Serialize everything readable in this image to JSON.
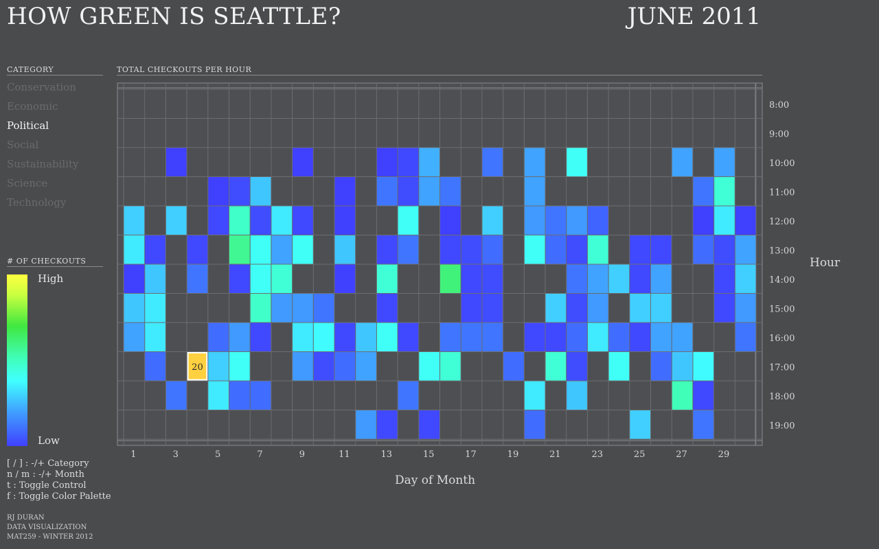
{
  "header": {
    "title": "HOW GREEN IS SEATTLE?",
    "date": "JUNE 2011"
  },
  "category": {
    "heading": "CATEGORY",
    "items": [
      "Conservation",
      "Economic",
      "Political",
      "Social",
      "Sustainability",
      "Science",
      "Technology"
    ],
    "selected": "Political"
  },
  "legend": {
    "heading": "# OF CHECKOUTS",
    "high": "High",
    "low": "Low"
  },
  "keys": [
    "[ / ] : -/+ Category",
    "n / m : -/+ Month",
    "t : Toggle Control",
    "f : Toggle Color Palette"
  ],
  "credits": [
    "RJ DURAN",
    "DATA VISUALIZATION",
    "MAT259 - WINTER 2012"
  ],
  "colors": {
    "background": "#4a4b4d",
    "grid": "#6c6d70",
    "cell_bg": "#4e4f52",
    "highlight": "#ffd040",
    "palette": [
      "#4040ff",
      "#4080ff",
      "#40c0ff",
      "#40ffff",
      "#40ffc0",
      "#40e840",
      "#c8ff40",
      "#ffff40"
    ]
  },
  "chart_data": {
    "type": "heatmap",
    "title": "TOTAL CHECKOUTS PER HOUR",
    "xlabel": "Day of Month",
    "ylabel": "Hour",
    "x_ticks": [
      "1",
      "3",
      "5",
      "7",
      "9",
      "11",
      "13",
      "15",
      "17",
      "19",
      "21",
      "23",
      "25",
      "27",
      "29"
    ],
    "hours": [
      "8:00",
      "9:00",
      "10:00",
      "11:00",
      "12:00",
      "13:00",
      "14:00",
      "15:00",
      "16:00",
      "17:00",
      "18:00",
      "19:00"
    ],
    "days": 30,
    "value_scale": "relative 0 (Low) to 1 (High)",
    "highlight": {
      "day": 4,
      "hour": "17:00",
      "value": "20"
    },
    "cells": [
      [
        3,
        "10:00",
        0.0
      ],
      [
        9,
        "10:00",
        0.0
      ],
      [
        13,
        "10:00",
        0.0
      ],
      [
        14,
        "10:00",
        0.02
      ],
      [
        15,
        "10:00",
        0.25
      ],
      [
        18,
        "10:00",
        0.12
      ],
      [
        20,
        "10:00",
        0.22
      ],
      [
        22,
        "10:00",
        0.45
      ],
      [
        27,
        "10:00",
        0.22
      ],
      [
        29,
        "10:00",
        0.22
      ],
      [
        5,
        "11:00",
        0.0
      ],
      [
        6,
        "11:00",
        0.03
      ],
      [
        7,
        "11:00",
        0.3
      ],
      [
        11,
        "11:00",
        0.0
      ],
      [
        13,
        "11:00",
        0.12
      ],
      [
        14,
        "11:00",
        0.03
      ],
      [
        15,
        "11:00",
        0.22
      ],
      [
        16,
        "11:00",
        0.12
      ],
      [
        20,
        "11:00",
        0.22
      ],
      [
        28,
        "11:00",
        0.12
      ],
      [
        29,
        "11:00",
        0.52
      ],
      [
        1,
        "12:00",
        0.32
      ],
      [
        3,
        "12:00",
        0.32
      ],
      [
        5,
        "12:00",
        0.02
      ],
      [
        6,
        "12:00",
        0.55
      ],
      [
        7,
        "12:00",
        0.03
      ],
      [
        8,
        "12:00",
        0.38
      ],
      [
        9,
        "12:00",
        0.02
      ],
      [
        11,
        "12:00",
        0.0
      ],
      [
        14,
        "12:00",
        0.45
      ],
      [
        16,
        "12:00",
        0.0
      ],
      [
        18,
        "12:00",
        0.32
      ],
      [
        20,
        "12:00",
        0.2
      ],
      [
        21,
        "12:00",
        0.12
      ],
      [
        22,
        "12:00",
        0.2
      ],
      [
        23,
        "12:00",
        0.08
      ],
      [
        28,
        "12:00",
        0.0
      ],
      [
        29,
        "12:00",
        0.38
      ],
      [
        30,
        "12:00",
        0.0
      ],
      [
        1,
        "13:00",
        0.38
      ],
      [
        2,
        "13:00",
        0.02
      ],
      [
        4,
        "13:00",
        0.02
      ],
      [
        6,
        "13:00",
        0.62
      ],
      [
        7,
        "13:00",
        0.45
      ],
      [
        8,
        "13:00",
        0.22
      ],
      [
        9,
        "13:00",
        0.45
      ],
      [
        11,
        "13:00",
        0.3
      ],
      [
        13,
        "13:00",
        0.02
      ],
      [
        14,
        "13:00",
        0.12
      ],
      [
        16,
        "13:00",
        0.02
      ],
      [
        17,
        "13:00",
        0.03
      ],
      [
        18,
        "13:00",
        0.1
      ],
      [
        20,
        "13:00",
        0.45
      ],
      [
        21,
        "13:00",
        0.1
      ],
      [
        22,
        "13:00",
        0.03
      ],
      [
        23,
        "13:00",
        0.52
      ],
      [
        25,
        "13:00",
        0.02
      ],
      [
        26,
        "13:00",
        0.02
      ],
      [
        28,
        "13:00",
        0.1
      ],
      [
        29,
        "13:00",
        0.03
      ],
      [
        30,
        "13:00",
        0.22
      ],
      [
        1,
        "14:00",
        0.0
      ],
      [
        2,
        "14:00",
        0.3
      ],
      [
        4,
        "14:00",
        0.12
      ],
      [
        6,
        "14:00",
        0.02
      ],
      [
        7,
        "14:00",
        0.45
      ],
      [
        8,
        "14:00",
        0.52
      ],
      [
        11,
        "14:00",
        0.0
      ],
      [
        13,
        "14:00",
        0.52
      ],
      [
        16,
        "14:00",
        0.65
      ],
      [
        17,
        "14:00",
        0.02
      ],
      [
        18,
        "14:00",
        0.03
      ],
      [
        22,
        "14:00",
        0.12
      ],
      [
        23,
        "14:00",
        0.22
      ],
      [
        24,
        "14:00",
        0.32
      ],
      [
        25,
        "14:00",
        0.02
      ],
      [
        26,
        "14:00",
        0.22
      ],
      [
        29,
        "14:00",
        0.02
      ],
      [
        30,
        "14:00",
        0.32
      ],
      [
        1,
        "15:00",
        0.3
      ],
      [
        2,
        "15:00",
        0.38
      ],
      [
        7,
        "15:00",
        0.55
      ],
      [
        8,
        "15:00",
        0.2
      ],
      [
        9,
        "15:00",
        0.2
      ],
      [
        10,
        "15:00",
        0.12
      ],
      [
        13,
        "15:00",
        0.02
      ],
      [
        17,
        "15:00",
        0.02
      ],
      [
        18,
        "15:00",
        0.03
      ],
      [
        21,
        "15:00",
        0.32
      ],
      [
        22,
        "15:00",
        0.03
      ],
      [
        23,
        "15:00",
        0.2
      ],
      [
        25,
        "15:00",
        0.32
      ],
      [
        26,
        "15:00",
        0.32
      ],
      [
        29,
        "15:00",
        0.02
      ],
      [
        30,
        "15:00",
        0.2
      ],
      [
        1,
        "16:00",
        0.22
      ],
      [
        2,
        "16:00",
        0.38
      ],
      [
        5,
        "16:00",
        0.1
      ],
      [
        6,
        "16:00",
        0.2
      ],
      [
        7,
        "16:00",
        0.02
      ],
      [
        9,
        "16:00",
        0.38
      ],
      [
        10,
        "16:00",
        0.42
      ],
      [
        11,
        "16:00",
        0.02
      ],
      [
        12,
        "16:00",
        0.3
      ],
      [
        13,
        "16:00",
        0.45
      ],
      [
        14,
        "16:00",
        0.02
      ],
      [
        16,
        "16:00",
        0.12
      ],
      [
        17,
        "16:00",
        0.12
      ],
      [
        18,
        "16:00",
        0.12
      ],
      [
        20,
        "16:00",
        0.02
      ],
      [
        21,
        "16:00",
        0.02
      ],
      [
        22,
        "16:00",
        0.1
      ],
      [
        23,
        "16:00",
        0.38
      ],
      [
        24,
        "16:00",
        0.1
      ],
      [
        25,
        "16:00",
        0.02
      ],
      [
        26,
        "16:00",
        0.22
      ],
      [
        27,
        "16:00",
        0.22
      ],
      [
        30,
        "16:00",
        0.12
      ],
      [
        2,
        "17:00",
        0.1
      ],
      [
        5,
        "17:00",
        0.32
      ],
      [
        6,
        "17:00",
        0.45
      ],
      [
        9,
        "17:00",
        0.2
      ],
      [
        10,
        "17:00",
        0.03
      ],
      [
        11,
        "17:00",
        0.1
      ],
      [
        12,
        "17:00",
        0.22
      ],
      [
        15,
        "17:00",
        0.45
      ],
      [
        16,
        "17:00",
        0.52
      ],
      [
        19,
        "17:00",
        0.1
      ],
      [
        21,
        "17:00",
        0.52
      ],
      [
        22,
        "17:00",
        0.03
      ],
      [
        24,
        "17:00",
        0.45
      ],
      [
        26,
        "17:00",
        0.1
      ],
      [
        27,
        "17:00",
        0.3
      ],
      [
        28,
        "17:00",
        0.42
      ],
      [
        3,
        "18:00",
        0.12
      ],
      [
        5,
        "18:00",
        0.38
      ],
      [
        6,
        "18:00",
        0.1
      ],
      [
        7,
        "18:00",
        0.1
      ],
      [
        14,
        "18:00",
        0.12
      ],
      [
        20,
        "18:00",
        0.38
      ],
      [
        22,
        "18:00",
        0.3
      ],
      [
        27,
        "18:00",
        0.58
      ],
      [
        28,
        "18:00",
        0.02
      ],
      [
        12,
        "19:00",
        0.2
      ],
      [
        13,
        "19:00",
        0.02
      ],
      [
        15,
        "19:00",
        0.02
      ],
      [
        20,
        "19:00",
        0.1
      ],
      [
        25,
        "19:00",
        0.32
      ],
      [
        28,
        "19:00",
        0.12
      ]
    ]
  }
}
